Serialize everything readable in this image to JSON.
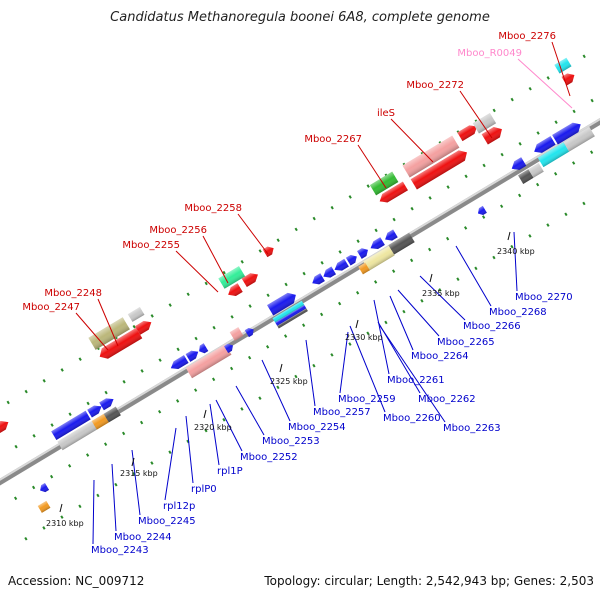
{
  "title": "Candidatus Methanoregula boonei 6A8, complete genome",
  "footer": {
    "accession": "Accession: NC_009712",
    "summary": "Topology: circular; Length: 2,542,943 bp; Genes: 2,503"
  },
  "colors": {
    "backbone": "#8a8a8a",
    "tick_green": "#2a8a2a",
    "label_top": "#cc0000",
    "label_bottom": "#0000cc",
    "label_rna": "#ff88cc",
    "red": "#ee1111",
    "blue": "#1a1aee",
    "pink": "#f4a0a0",
    "green": "#33bb33",
    "cyan": "#22e5ee",
    "olive": "#bbb77a",
    "gray": "#c8c8c8",
    "dark": "#555555",
    "spring": "#33ee99",
    "orange": "#f29a22",
    "khaki": "#eee6a0"
  },
  "kbp_labels": [
    "2310 kbp",
    "2315 kbp",
    "2320 kbp",
    "2325 kbp",
    "2330 kbp",
    "2335 kbp",
    "2340 kbp"
  ],
  "top_labels": [
    "Mboo_2276",
    "Mboo_R0049",
    "Mboo_2272",
    "ileS",
    "Mboo_2267",
    "Mboo_2258",
    "Mboo_2256",
    "Mboo_2255",
    "Mboo_2248",
    "Mboo_2247"
  ],
  "bottom_labels": [
    "Mboo_2270",
    "Mboo_2268",
    "Mboo_2266",
    "Mboo_2265",
    "Mboo_2264",
    "Mboo_2261",
    "Mboo_2262",
    "Mboo_2263",
    "Mboo_2260",
    "Mboo_2259",
    "Mboo_2257",
    "Mboo_2254",
    "Mboo_2253",
    "Mboo_2252",
    "rpl1P",
    "rplP0",
    "rpl12p",
    "Mboo_2245",
    "Mboo_2244",
    "Mboo_2243"
  ]
}
